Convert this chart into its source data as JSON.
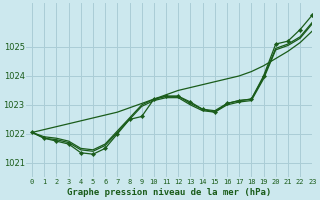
{
  "background_color": "#cce8ee",
  "grid_color": "#aacdd6",
  "line_color": "#1a5c1a",
  "text_color": "#1a5c1a",
  "xlabel": "Graphe pression niveau de la mer (hPa)",
  "ylim": [
    1020.5,
    1026.5
  ],
  "xlim": [
    -0.5,
    23
  ],
  "yticks": [
    1021,
    1022,
    1023,
    1024,
    1025
  ],
  "xtick_labels": [
    "0",
    "1",
    "2",
    "3",
    "4",
    "5",
    "6",
    "7",
    "8",
    "9",
    "10",
    "11",
    "12",
    "13",
    "14",
    "15",
    "16",
    "17",
    "18",
    "19",
    "20",
    "21",
    "22",
    "23"
  ],
  "series_plain": [
    [
      1022.05,
      1021.9,
      1021.85,
      1021.75,
      1021.5,
      1021.45,
      1021.65,
      1022.1,
      1022.55,
      1023.0,
      1023.2,
      1023.3,
      1023.3,
      1023.05,
      1022.85,
      1022.8,
      1023.05,
      1023.15,
      1023.2,
      1023.95,
      1024.95,
      1025.1,
      1025.35,
      1025.85
    ],
    [
      1022.05,
      1021.85,
      1021.8,
      1021.7,
      1021.45,
      1021.4,
      1021.6,
      1022.05,
      1022.5,
      1022.95,
      1023.15,
      1023.25,
      1023.25,
      1023.0,
      1022.8,
      1022.75,
      1023.0,
      1023.1,
      1023.15,
      1023.9,
      1024.9,
      1025.05,
      1025.3,
      1025.8
    ]
  ],
  "series_straight": [
    [
      1022.05,
      1022.15,
      1022.25,
      1022.35,
      1022.45,
      1022.55,
      1022.65,
      1022.75,
      1022.9,
      1023.05,
      1023.2,
      1023.35,
      1023.5,
      1023.6,
      1023.7,
      1023.8,
      1023.9,
      1024.0,
      1024.15,
      1024.35,
      1024.6,
      1024.85,
      1025.15,
      1025.55
    ]
  ],
  "series_marker": {
    "x": [
      0,
      1,
      2,
      3,
      4,
      5,
      6,
      7,
      8,
      9,
      10,
      11,
      12,
      13,
      14,
      15,
      16,
      17,
      18,
      19,
      20,
      21,
      22,
      23
    ],
    "y": [
      1022.05,
      1021.85,
      1021.75,
      1021.65,
      1021.35,
      1021.3,
      1021.5,
      1022.0,
      1022.5,
      1022.6,
      1023.2,
      1023.3,
      1023.3,
      1023.1,
      1022.85,
      1022.75,
      1023.05,
      1023.15,
      1023.2,
      1024.0,
      1025.1,
      1025.2,
      1025.6,
      1026.1
    ]
  }
}
